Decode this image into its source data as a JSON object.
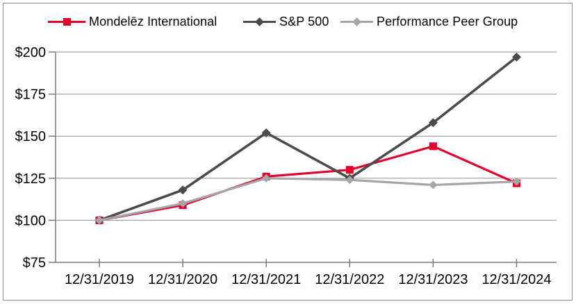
{
  "chart_data": {
    "type": "line",
    "title": "",
    "xlabel": "",
    "ylabel": "",
    "categories": [
      "12/31/2019",
      "12/31/2020",
      "12/31/2021",
      "12/31/2022",
      "12/31/2023",
      "12/31/2024"
    ],
    "series": [
      {
        "name": "Mondelēz International",
        "color": "#e4002b",
        "marker": "square",
        "values": [
          100,
          109,
          126,
          130,
          144,
          122
        ]
      },
      {
        "name": "S&P 500",
        "color": "#4b4b4b",
        "marker": "diamond",
        "values": [
          100,
          118,
          152,
          125,
          158,
          197
        ]
      },
      {
        "name": "Performance Peer Group",
        "color": "#a6a6a6",
        "marker": "diamond",
        "values": [
          100,
          110,
          125,
          124,
          121,
          123
        ]
      }
    ],
    "ylim": [
      75,
      200
    ],
    "ytick_step": 25,
    "yticks": [
      {
        "value": 200,
        "label": "$200"
      },
      {
        "value": 175,
        "label": "$175"
      },
      {
        "value": 150,
        "label": "$150"
      },
      {
        "value": 125,
        "label": "$125"
      },
      {
        "value": 100,
        "label": "$100"
      },
      {
        "value": 75,
        "label": "$75"
      }
    ],
    "legend_position": "top",
    "grid": "horizontal",
    "colors": {
      "grid": "#8e8e8e",
      "axis": "#7a7a7a",
      "text": "#000000",
      "frame_border": "#8a8a8a",
      "background": "#ffffff"
    }
  }
}
